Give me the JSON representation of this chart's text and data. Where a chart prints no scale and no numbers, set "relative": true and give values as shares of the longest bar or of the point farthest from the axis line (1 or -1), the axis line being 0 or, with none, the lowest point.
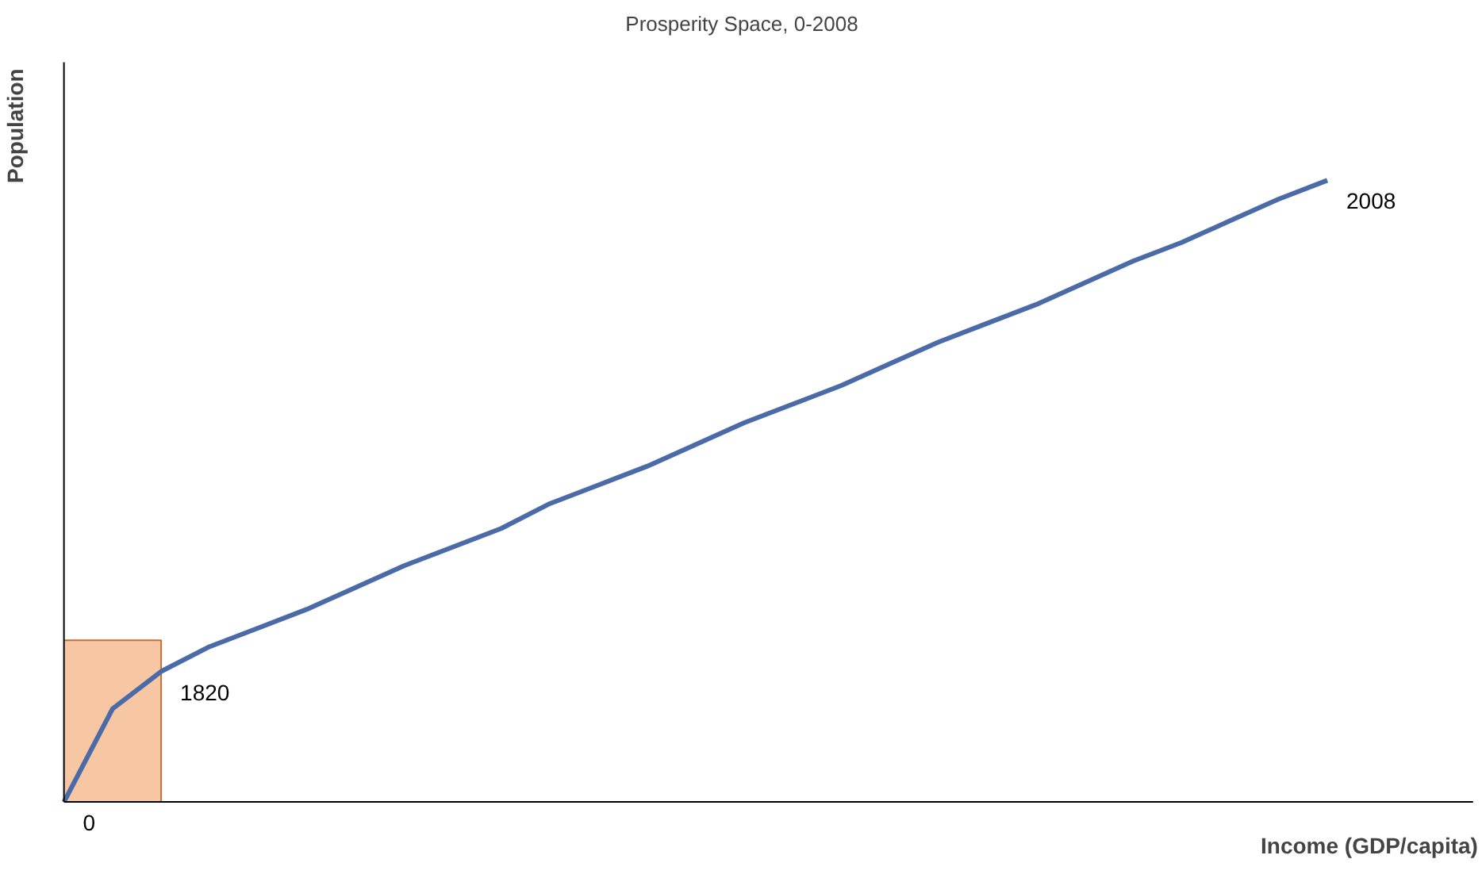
{
  "chart_data": {
    "type": "line",
    "title": "Prosperity Space, 0-2008",
    "xlabel": "Income (GDP/capita)",
    "ylabel": "Population",
    "relative": true,
    "grid": false,
    "categories": [
      null,
      null,
      null,
      null,
      null,
      null,
      null,
      null,
      null,
      null,
      null,
      null,
      null,
      null,
      null,
      null,
      null,
      null,
      null,
      null,
      null,
      null,
      null,
      null,
      null,
      null,
      null
    ],
    "series": [
      {
        "type": "area",
        "color": "#f7c6a3",
        "values": [
          0.26,
          0.26,
          0.26,
          null,
          null,
          null,
          null,
          null,
          null,
          null,
          null,
          null,
          null,
          null,
          null,
          null,
          null,
          null,
          null,
          null,
          null,
          null,
          null,
          null,
          null,
          null,
          null
        ]
      },
      {
        "color": "#4a6aa8",
        "values": [
          0,
          0.15,
          0.21,
          0.25,
          0.28,
          0.31,
          0.345,
          0.38,
          0.41,
          0.44,
          0.48,
          0.51,
          0.54,
          0.575,
          0.61,
          0.64,
          0.67,
          0.705,
          0.74,
          0.77,
          0.8,
          0.835,
          0.87,
          0.9,
          0.935,
          0.97,
          1.0
        ]
      }
    ],
    "annotations": [
      "0",
      "1820",
      "2008"
    ]
  }
}
